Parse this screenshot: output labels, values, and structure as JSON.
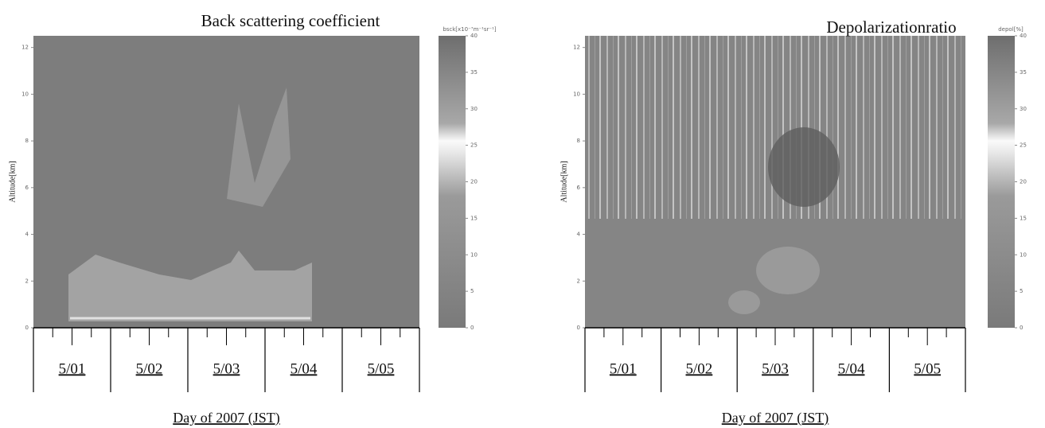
{
  "chart_data": [
    {
      "type": "heatmap",
      "title": "Back scattering coefficient",
      "colorbar_label": "bsck[x10⁻⁷m⁻¹sr⁻¹]",
      "ylabel": "Altitude[km]",
      "ylim": [
        0,
        12.5
      ],
      "yticks": [
        0,
        2,
        4,
        6,
        8,
        10,
        12
      ],
      "categories": [
        "5/01",
        "5/02",
        "5/03",
        "5/04",
        "5/05"
      ],
      "xlabel": "Day of 2007 (JST)",
      "clim": [
        0,
        40
      ],
      "cticks": [
        0,
        5,
        10,
        15,
        20,
        25,
        30,
        35,
        40
      ]
    },
    {
      "type": "heatmap",
      "title": "Depolarizationratio",
      "colorbar_label": "depol[%]",
      "ylabel": "Altitude[km]",
      "ylim": [
        0,
        12.5
      ],
      "yticks": [
        0,
        2,
        4,
        6,
        8,
        10,
        12
      ],
      "categories": [
        "5/01",
        "5/02",
        "5/03",
        "5/04",
        "5/05"
      ],
      "xlabel": "Day of 2007 (JST)",
      "clim": [
        0,
        40
      ],
      "cticks": [
        0,
        5,
        10,
        15,
        20,
        25,
        30,
        35,
        40
      ]
    }
  ]
}
